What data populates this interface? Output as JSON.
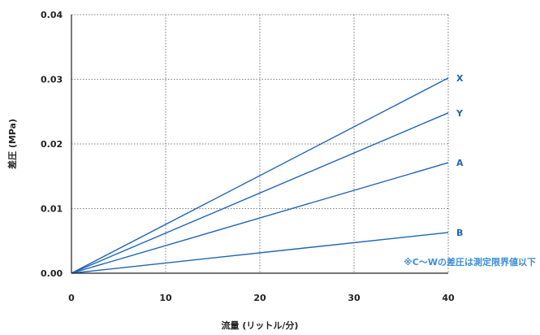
{
  "colors": {
    "series": "#1f64b4",
    "note": "#3d8ed6",
    "axis": "#222222"
  },
  "chart_data": {
    "type": "line",
    "xlabel": "流量 (リットル/分)",
    "ylabel": "差圧 (MPa)",
    "xlim": [
      0,
      40
    ],
    "ylim": [
      0,
      0.04
    ],
    "x_ticks": [
      "0",
      "10",
      "20",
      "30",
      "40"
    ],
    "y_ticks": [
      "0.00",
      "0.01",
      "0.02",
      "0.03",
      "0.04"
    ],
    "grid": true,
    "series": [
      {
        "name": "X",
        "x": [
          0,
          40
        ],
        "y": [
          0,
          0.0302
        ]
      },
      {
        "name": "Y",
        "x": [
          0,
          40
        ],
        "y": [
          0,
          0.0248
        ]
      },
      {
        "name": "A",
        "x": [
          0,
          40
        ],
        "y": [
          0,
          0.0171
        ]
      },
      {
        "name": "B",
        "x": [
          0,
          40
        ],
        "y": [
          0,
          0.0063
        ]
      }
    ],
    "annotation": "※C〜Wの差圧は測定限界値以下"
  }
}
